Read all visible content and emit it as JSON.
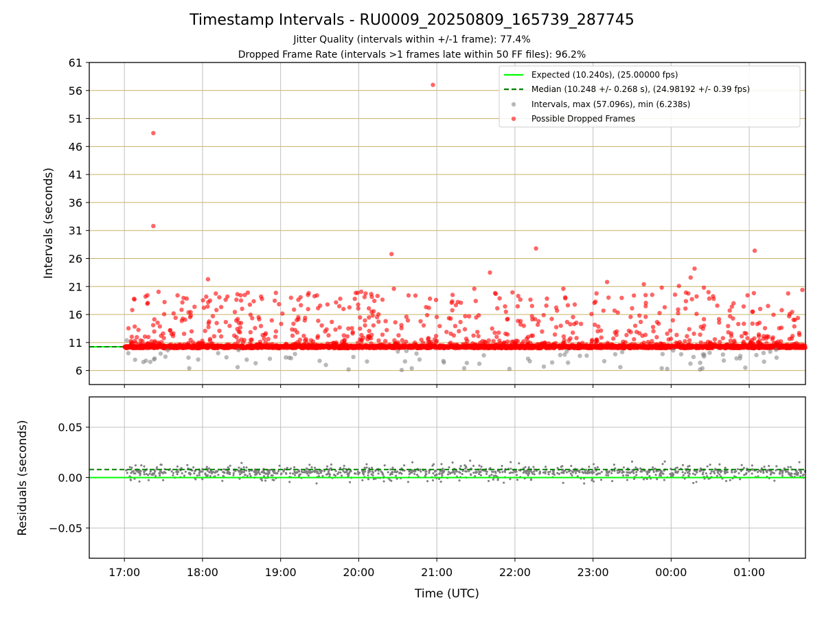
{
  "title": "Timestamp Intervals - RU0009_20250809_165739_287745",
  "subtitle_1": "Jitter Quality (intervals within +/-1 frame): 77.4%",
  "subtitle_2": "Dropped Frame Rate (intervals >1 frames late within 50 FF files): 96.2%",
  "colors": {
    "expected": "#00ff00",
    "median": "#008000",
    "intervals": "#808080",
    "dropped": "#ff0000",
    "grid_top": "#c8b060",
    "grid": "#c0c0c0"
  },
  "chart_data": [
    {
      "type": "scatter",
      "name": "intervals-panel",
      "xlabel": "",
      "ylabel": "Intervals (seconds)",
      "x_range_hours": [
        16.55,
        25.72
      ],
      "ylim": [
        3.5,
        61
      ],
      "y_ticks": [
        6,
        11,
        16,
        21,
        26,
        31,
        36,
        41,
        46,
        51,
        56,
        61
      ],
      "grid": true,
      "legend_position": "top-right",
      "legend": [
        "Expected (10.240s), (25.00000 fps)",
        "Median (10.248 +/- 0.268 s), (24.98192 +/- 0.39 fps)",
        "Intervals, max (57.096s), min (6.238s)",
        "Possible Dropped Frames"
      ],
      "expected_value": 10.24,
      "median_value": 10.248,
      "interval_max": 57.096,
      "interval_min": 6.238,
      "series": [
        {
          "name": "Possible Dropped Frames",
          "points": [
            [
              17.37,
              48.4
            ],
            [
              17.37,
              31.8
            ],
            [
              20.42,
              26.8
            ],
            [
              20.95,
              57.0
            ],
            [
              22.27,
              27.8
            ],
            [
              21.68,
              23.5
            ],
            [
              24.3,
              24.2
            ],
            [
              25.07,
              27.4
            ],
            [
              18.07,
              22.3
            ],
            [
              21.48,
              20.6
            ],
            [
              22.62,
              20.6
            ],
            [
              23.18,
              21.8
            ],
            [
              23.65,
              21.4
            ],
            [
              23.88,
              20.8
            ],
            [
              24.1,
              21.1
            ],
            [
              24.25,
              22.6
            ],
            [
              24.42,
              20.8
            ],
            [
              25.68,
              20.4
            ],
            [
              20.45,
              20.6
            ],
            [
              19.35,
              19.5
            ],
            [
              18.58,
              19.9
            ],
            [
              18.75,
              19.2
            ],
            [
              19.6,
              17.8
            ],
            [
              17.85,
              15.8
            ],
            [
              17.63,
              16.2
            ]
          ]
        },
        {
          "name": "Intervals",
          "points": [
            [
              17.03,
              11.4
            ],
            [
              17.05,
              9.1
            ],
            [
              17.38,
              8.0
            ],
            [
              17.83,
              6.4
            ],
            [
              17.82,
              8.3
            ],
            [
              18.2,
              9.1
            ],
            [
              18.45,
              6.6
            ],
            [
              18.68,
              7.3
            ],
            [
              19.58,
              7.0
            ],
            [
              19.87,
              6.2
            ],
            [
              20.55,
              6.1
            ],
            [
              20.68,
              6.4
            ],
            [
              21.35,
              6.4
            ],
            [
              21.93,
              6.3
            ],
            [
              22.37,
              6.7
            ],
            [
              22.68,
              7.4
            ],
            [
              23.35,
              6.6
            ],
            [
              23.88,
              6.4
            ],
            [
              23.95,
              6.3
            ],
            [
              24.37,
              6.2
            ],
            [
              24.4,
              6.4
            ],
            [
              24.42,
              8.5
            ],
            [
              24.95,
              6.5
            ],
            [
              25.35,
              8.3
            ]
          ]
        }
      ]
    },
    {
      "type": "scatter",
      "name": "residuals-panel",
      "xlabel": "Time (UTC)",
      "ylabel": "Residuals (seconds)",
      "ylim": [
        -0.08,
        0.08
      ],
      "y_ticks": [
        0.05,
        0.0,
        -0.05
      ],
      "y_tick_labels": [
        "0.05",
        "0.00",
        "−0.05"
      ],
      "x_ticks_hours": [
        17,
        18,
        19,
        20,
        21,
        22,
        23,
        24,
        25
      ],
      "x_tick_labels": [
        "17:00",
        "18:00",
        "19:00",
        "20:00",
        "21:00",
        "22:00",
        "23:00",
        "00:00",
        "01:00"
      ],
      "expected_value": 0.0,
      "median_value": 0.008,
      "grid": true
    }
  ]
}
